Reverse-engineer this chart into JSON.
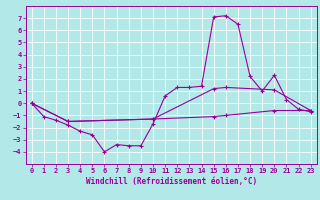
{
  "xlabel": "Windchill (Refroidissement éolien,°C)",
  "background_color": "#b2e8e8",
  "grid_color": "#ffffff",
  "line_color": "#990099",
  "xlim": [
    -0.5,
    23.5
  ],
  "ylim": [
    -5.0,
    8.0
  ],
  "xticks": [
    0,
    1,
    2,
    3,
    4,
    5,
    6,
    7,
    8,
    9,
    10,
    11,
    12,
    13,
    14,
    15,
    16,
    17,
    18,
    19,
    20,
    21,
    22,
    23
  ],
  "yticks": [
    -4,
    -3,
    -2,
    -1,
    0,
    1,
    2,
    3,
    4,
    5,
    6,
    7
  ],
  "series": [
    {
      "x": [
        0,
        1,
        2,
        3,
        4,
        5,
        6,
        7,
        8,
        9,
        10,
        11,
        12,
        13,
        14,
        15,
        16,
        17,
        18,
        19,
        20,
        21,
        22,
        23
      ],
      "y": [
        0,
        -1.1,
        -1.4,
        -1.8,
        -2.3,
        -2.6,
        -4.0,
        -3.4,
        -3.5,
        -3.5,
        -1.7,
        0.6,
        1.3,
        1.3,
        1.4,
        7.1,
        7.2,
        6.5,
        2.2,
        1.0,
        2.3,
        0.3,
        -0.5,
        -0.7
      ]
    },
    {
      "x": [
        0,
        3,
        10,
        15,
        16,
        20,
        23
      ],
      "y": [
        0,
        -1.5,
        -1.3,
        -1.1,
        -1.0,
        -0.6,
        -0.6
      ]
    },
    {
      "x": [
        0,
        3,
        10,
        15,
        16,
        20,
        23
      ],
      "y": [
        0,
        -1.5,
        -1.3,
        1.2,
        1.3,
        1.1,
        -0.6
      ]
    }
  ]
}
